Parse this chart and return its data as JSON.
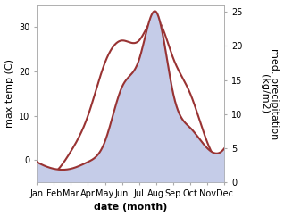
{
  "months": [
    "Jan",
    "Feb",
    "Mar",
    "Apr",
    "May",
    "Jun",
    "Jul",
    "Aug",
    "Sep",
    "Oct",
    "Nov",
    "Dec"
  ],
  "month_positions": [
    1,
    2,
    3,
    4,
    5,
    6,
    7,
    8,
    9,
    10,
    11,
    12
  ],
  "temperature": [
    -2.5,
    -3,
    2,
    10,
    22,
    27,
    27,
    32,
    23,
    15,
    4,
    1
  ],
  "precipitation": [
    3,
    2,
    2,
    3,
    6,
    14,
    18,
    25,
    13,
    8,
    5,
    5
  ],
  "temp_color": "#993333",
  "precip_fill_color": "#c5cce8",
  "ylabel_left": "max temp (C)",
  "ylabel_right": "med. precipitation\n(kg/m2)",
  "xlabel": "date (month)",
  "ylim_left": [
    -5,
    35
  ],
  "ylim_right": [
    0,
    26
  ],
  "yticks_left": [
    0,
    10,
    20,
    30
  ],
  "yticks_right": [
    0,
    5,
    10,
    15,
    20,
    25
  ],
  "bg_color": "#ffffff",
  "spine_color": "#aaaaaa",
  "font_size_ticks": 7,
  "font_size_labels": 8,
  "line_width": 1.5
}
